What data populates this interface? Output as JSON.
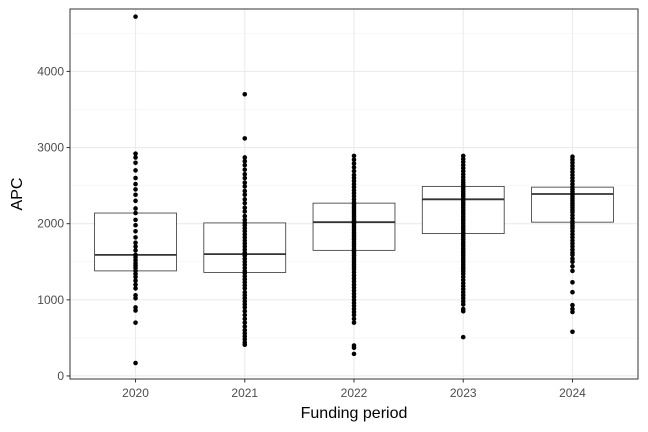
{
  "chart_data": {
    "type": "box",
    "xlabel": "Funding period",
    "ylabel": "APC",
    "ylim": [
      -40,
      4820
    ],
    "y_ticks": [
      0,
      1000,
      2000,
      3000,
      4000
    ],
    "y_tick_labels": [
      "0",
      "1000",
      "2000",
      "3000",
      "4000"
    ],
    "categories": [
      "2020",
      "2021",
      "2022",
      "2023",
      "2024"
    ],
    "grid": true,
    "boxes": [
      {
        "category": "2020",
        "q1": 1380,
        "median": 1590,
        "q3": 2140
      },
      {
        "category": "2021",
        "q1": 1360,
        "median": 1600,
        "q3": 2010
      },
      {
        "category": "2022",
        "q1": 1650,
        "median": 2020,
        "q3": 2270
      },
      {
        "category": "2023",
        "q1": 1870,
        "median": 2320,
        "q3": 2490
      },
      {
        "category": "2024",
        "q1": 2020,
        "median": 2390,
        "q3": 2480
      }
    ],
    "points": [
      {
        "category": "2020",
        "values": [
          4720,
          2920,
          2870,
          2800,
          2700,
          2600,
          2520,
          2450,
          2380,
          2300,
          2200,
          2140,
          2050,
          1980,
          1900,
          1820,
          1750,
          1700,
          1650,
          1590,
          1560,
          1520,
          1480,
          1450,
          1420,
          1380,
          1340,
          1300,
          1250,
          1200,
          1150,
          1060,
          1020,
          900,
          860,
          700,
          170
        ]
      },
      {
        "category": "2021",
        "values": [
          3700,
          3120,
          2870,
          2820,
          2770,
          2710,
          2650,
          2600,
          2540,
          2490,
          2430,
          2380,
          2320,
          2270,
          2210,
          2160,
          2100,
          2050,
          2010,
          1980,
          1940,
          1900,
          1860,
          1820,
          1780,
          1740,
          1700,
          1660,
          1620,
          1600,
          1580,
          1540,
          1500,
          1460,
          1420,
          1380,
          1350,
          1310,
          1270,
          1230,
          1190,
          1150,
          1100,
          1060,
          1020,
          980,
          940,
          900,
          850,
          800,
          750,
          700,
          650,
          600,
          560,
          520,
          480,
          440,
          410
        ]
      },
      {
        "category": "2022",
        "values": [
          2890,
          2840,
          2790,
          2740,
          2690,
          2640,
          2600,
          2560,
          2520,
          2480,
          2440,
          2400,
          2360,
          2320,
          2280,
          2250,
          2220,
          2190,
          2160,
          2130,
          2100,
          2070,
          2040,
          2020,
          2000,
          1970,
          1940,
          1910,
          1880,
          1850,
          1820,
          1790,
          1760,
          1730,
          1700,
          1670,
          1640,
          1610,
          1580,
          1550,
          1520,
          1490,
          1460,
          1430,
          1400,
          1360,
          1320,
          1280,
          1240,
          1200,
          1160,
          1120,
          1080,
          1040,
          1000,
          960,
          920,
          880,
          840,
          800,
          750,
          700,
          400,
          370,
          290
        ]
      },
      {
        "category": "2023",
        "values": [
          2890,
          2850,
          2810,
          2770,
          2730,
          2690,
          2650,
          2610,
          2570,
          2540,
          2510,
          2480,
          2450,
          2420,
          2390,
          2360,
          2330,
          2300,
          2270,
          2240,
          2210,
          2180,
          2150,
          2120,
          2090,
          2060,
          2030,
          2000,
          1970,
          1940,
          1910,
          1880,
          1850,
          1820,
          1790,
          1760,
          1730,
          1700,
          1670,
          1640,
          1610,
          1580,
          1550,
          1520,
          1490,
          1460,
          1430,
          1400,
          1370,
          1340,
          1300,
          1260,
          1220,
          1180,
          1140,
          1100,
          1060,
          1020,
          980,
          940,
          880,
          850,
          510
        ]
      },
      {
        "category": "2024",
        "values": [
          2880,
          2840,
          2800,
          2760,
          2720,
          2680,
          2640,
          2600,
          2560,
          2520,
          2480,
          2450,
          2420,
          2390,
          2360,
          2330,
          2300,
          2270,
          2240,
          2210,
          2180,
          2150,
          2110,
          2070,
          2030,
          2000,
          1970,
          1940,
          1900,
          1860,
          1820,
          1780,
          1740,
          1700,
          1660,
          1620,
          1590,
          1540,
          1500,
          1440,
          1380,
          1230,
          1100,
          930,
          880,
          840,
          580
        ]
      }
    ]
  }
}
